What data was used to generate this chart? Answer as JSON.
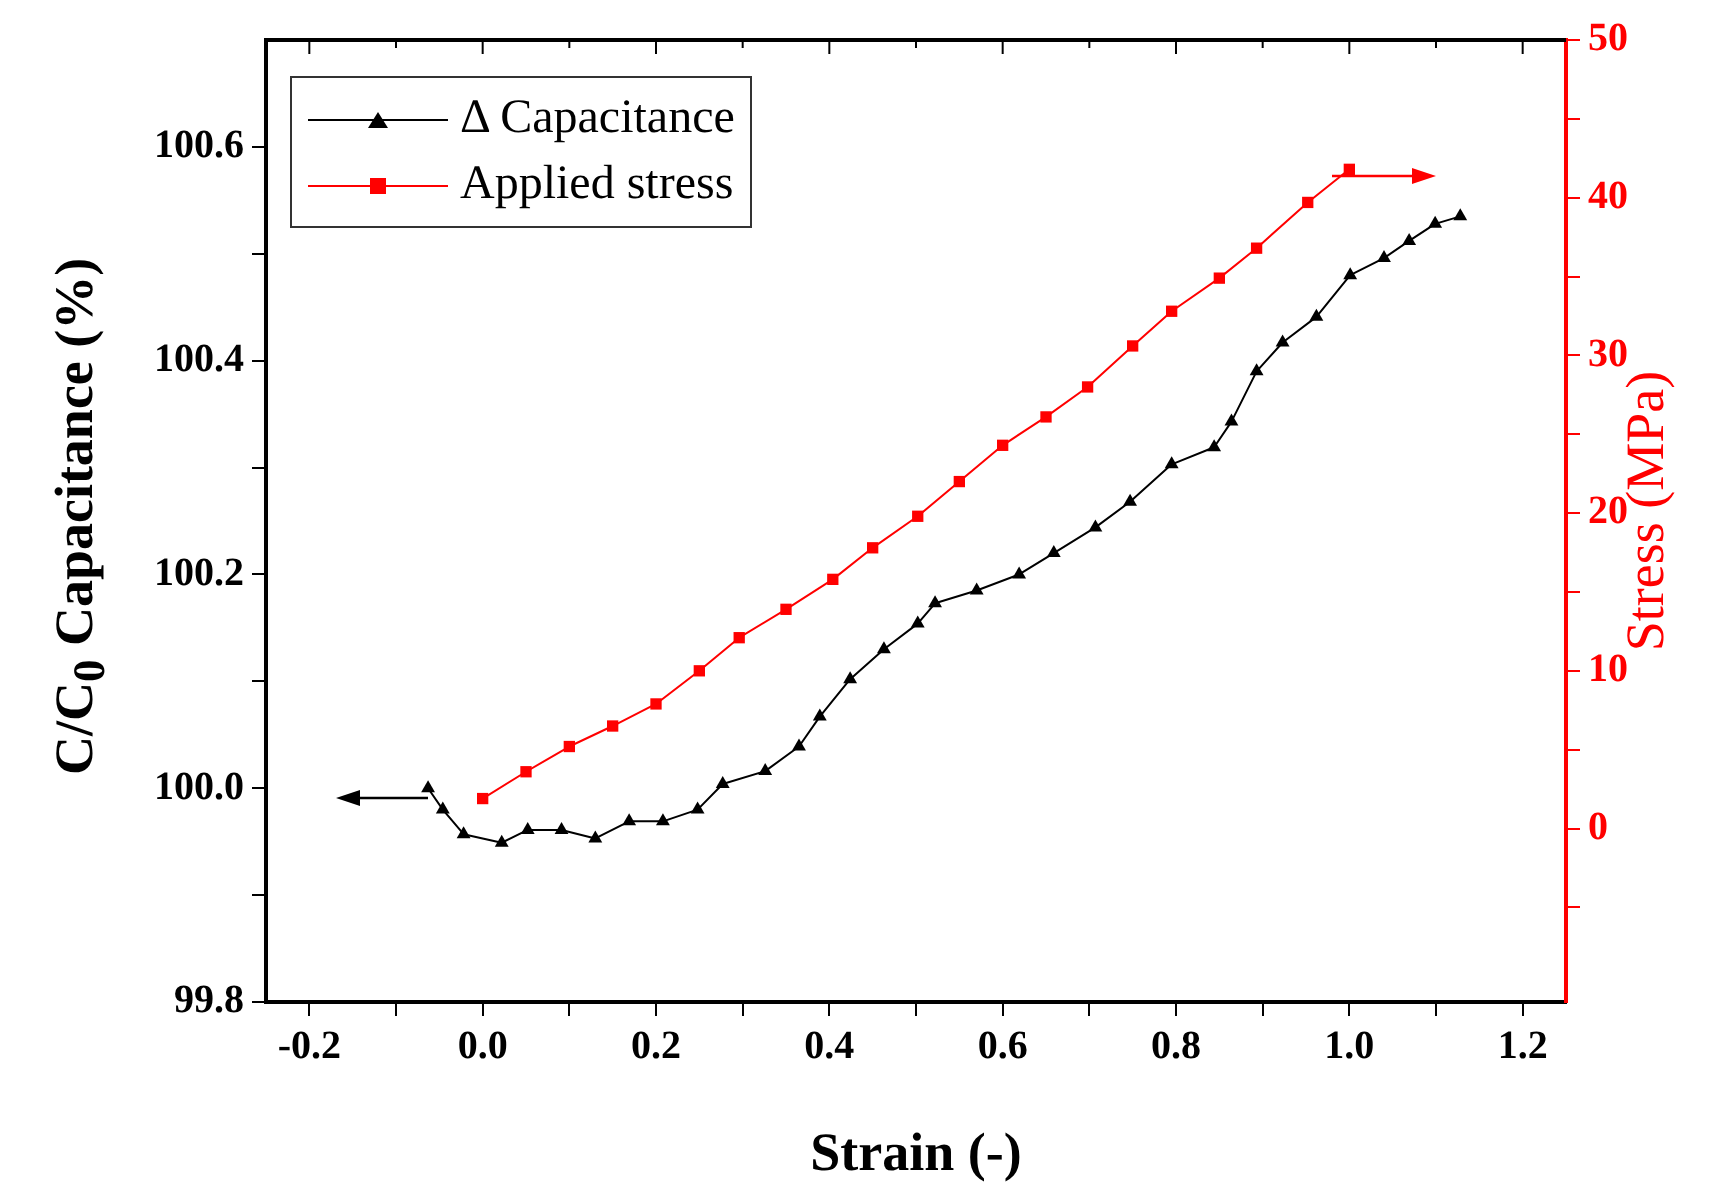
{
  "chart_data": {
    "type": "line",
    "xlabel": "Strain (-)",
    "ylabel": "C/C$_{0}$ Capacitance (%)",
    "y2label": "Stress (MPa)",
    "xlim": [
      -0.25,
      1.25
    ],
    "xticks": [
      {
        "value": -0.2,
        "label": "-0.2"
      },
      {
        "value": -0.1,
        "label": null
      },
      {
        "value": 0,
        "label": "0.0"
      },
      {
        "value": 0.1,
        "label": null
      },
      0.2,
      {
        "value": 0.3,
        "label": null
      },
      0.4,
      {
        "value": 0.5,
        "label": null
      },
      0.6,
      {
        "value": 0.7,
        "label": null
      },
      0.8,
      {
        "value": 0.9,
        "label": null
      },
      {
        "value": 1,
        "label": "1.0"
      },
      {
        "value": 1.1,
        "label": null
      },
      1.2
    ],
    "ylim": [
      99.8,
      100.7
    ],
    "yticks": [
      99.8,
      {
        "value": 99.9,
        "label": null
      },
      {
        "value": 100,
        "label": "100.0"
      },
      {
        "value": 100.1,
        "label": null
      },
      100.2,
      {
        "value": 100.3,
        "label": null
      },
      100.4,
      {
        "value": 100.5,
        "label": null
      },
      100.6
    ],
    "y2lim": [
      -11,
      50
    ],
    "y2ticks": [
      {
        "value": -5,
        "label": null
      },
      0,
      {
        "value": 5,
        "label": null
      },
      10,
      {
        "value": 15,
        "label": null
      },
      20,
      {
        "value": 25,
        "label": null
      },
      30,
      {
        "value": 35,
        "label": null
      },
      40,
      {
        "value": 45,
        "label": null
      },
      50
    ],
    "grid": false,
    "legend": "top left",
    "line_style": "solid",
    "series": [
      {
        "name": "Δ Capacitance",
        "marker": "triangle",
        "color": "#000000",
        "axis": "y",
        "x": [
          -0.063,
          -0.046,
          -0.022,
          0.022,
          0.052,
          0.091,
          0.13,
          0.169,
          0.208,
          0.248,
          0.277,
          0.326,
          0.365,
          0.389,
          0.424,
          0.463,
          0.502,
          0.522,
          0.57,
          0.619,
          0.659,
          0.707,
          0.747,
          0.795,
          0.844,
          0.864,
          0.893,
          0.923,
          0.962,
          1.001,
          1.04,
          1.069,
          1.099,
          1.128
        ],
        "values": [
          100.0,
          99.98,
          99.957,
          99.949,
          99.961,
          99.961,
          99.953,
          99.969,
          99.969,
          99.98,
          100.004,
          100.016,
          100.039,
          100.067,
          100.102,
          100.13,
          100.154,
          100.173,
          100.185,
          100.2,
          100.22,
          100.244,
          100.268,
          100.303,
          100.319,
          100.343,
          100.39,
          100.417,
          100.441,
          100.48,
          100.496,
          100.512,
          100.528,
          100.535
        ]
      },
      {
        "name": "Applied stress",
        "marker": "square",
        "color": "#ff0000",
        "axis": "y2",
        "x": [
          0,
          0.05,
          0.1,
          0.15,
          0.2,
          0.25,
          0.296,
          0.35,
          0.404,
          0.45,
          0.502,
          0.55,
          0.6,
          0.65,
          0.698,
          0.75,
          0.795,
          0.85,
          0.893,
          0.952,
          1.0
        ],
        "values": [
          1.9,
          3.6,
          5.2,
          6.5,
          7.9,
          10.0,
          12.1,
          13.9,
          15.8,
          17.8,
          19.8,
          22.0,
          24.3,
          26.1,
          28.0,
          30.6,
          32.8,
          34.9,
          36.8,
          39.7,
          41.8
        ]
      }
    ]
  }
}
